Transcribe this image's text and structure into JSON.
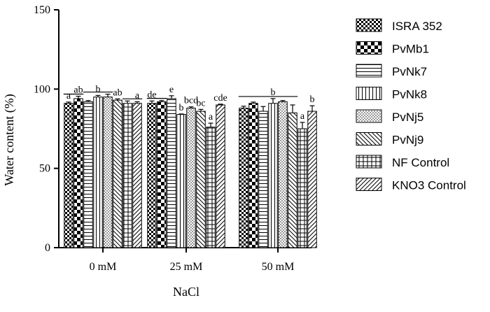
{
  "chart_data": {
    "type": "bar",
    "xlabel": "NaCl",
    "ylabel": "Water content (%)",
    "ylim": [
      0,
      150
    ],
    "yticks": [
      0,
      50,
      100,
      150
    ],
    "categories": [
      "0 mM",
      "25 mM",
      "50 mM"
    ],
    "series": [
      {
        "name": "ISRA 352",
        "pattern": "checker-small",
        "values": [
          91,
          91,
          88
        ],
        "errors": [
          0.8,
          1.5,
          1.2
        ]
      },
      {
        "name": "PvMb1",
        "pattern": "checker-large",
        "values": [
          94,
          92,
          91
        ],
        "errors": [
          1.5,
          0.8,
          0.8
        ]
      },
      {
        "name": "PvNk7",
        "pattern": "hlines",
        "values": [
          92,
          94,
          86
        ],
        "errors": [
          0.8,
          1.8,
          3.0
        ]
      },
      {
        "name": "PvNk8",
        "pattern": "vlines",
        "values": [
          95,
          84,
          91
        ],
        "errors": [
          1.0,
          0.3,
          3.0
        ]
      },
      {
        "name": "PvNj5",
        "pattern": "dots",
        "values": [
          95,
          88,
          92
        ],
        "errors": [
          1.8,
          0.8,
          0.8
        ]
      },
      {
        "name": "PvNj9",
        "pattern": "back-diag",
        "values": [
          93,
          86,
          85
        ],
        "errors": [
          0.8,
          1.2,
          5.0
        ]
      },
      {
        "name": "NF Control",
        "pattern": "grid",
        "values": [
          91,
          76,
          75
        ],
        "errors": [
          1.5,
          2.5,
          4.0
        ]
      },
      {
        "name": "KNO3 Control",
        "pattern": "fwd-diag",
        "values": [
          91,
          90,
          86
        ],
        "errors": [
          1.0,
          0.5,
          3.5
        ]
      }
    ],
    "significance_labels": [
      [
        "a",
        "ab",
        "",
        "b",
        "",
        "ab",
        "",
        "a"
      ],
      [
        "de",
        "",
        "e",
        "b",
        "bcd",
        "bc",
        "a",
        "cde"
      ],
      [
        "",
        "",
        "",
        "b",
        "",
        "",
        "a",
        "b"
      ]
    ],
    "grid": false,
    "legend_position": "right"
  }
}
